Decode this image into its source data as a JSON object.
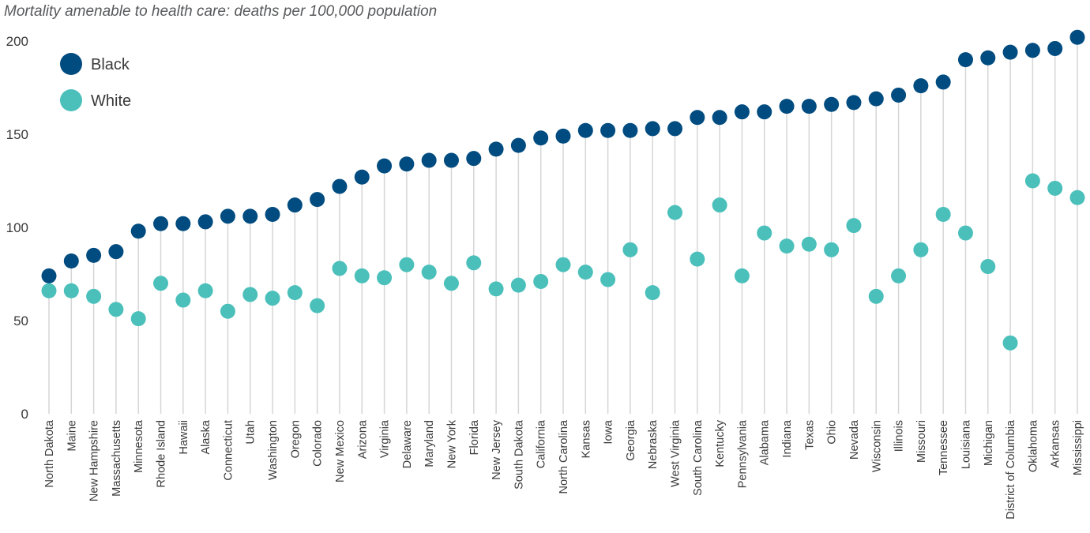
{
  "chart_data": {
    "type": "scatter",
    "title": "Mortality amenable to health care: deaths per 100,000 population",
    "ylim": [
      0,
      200
    ],
    "yticks": [
      0,
      50,
      100,
      150,
      200
    ],
    "grid": false,
    "legend_position": "top-left",
    "categories": [
      "North Dakota",
      "Maine",
      "New Hampshire",
      "Massachusetts",
      "Minnesota",
      "Rhode Island",
      "Hawaii",
      "Alaska",
      "Connecticut",
      "Utah",
      "Washington",
      "Oregon",
      "Colorado",
      "New Mexico",
      "Arizona",
      "Virginia",
      "Delaware",
      "Maryland",
      "New York",
      "Florida",
      "New Jersey",
      "South Dakota",
      "California",
      "North Carolina",
      "Kansas",
      "Iowa",
      "Georgia",
      "Nebraska",
      "West Virginia",
      "South Carolina",
      "Kentucky",
      "Pennsylvania",
      "Alabama",
      "Indiana",
      "Texas",
      "Ohio",
      "Nevada",
      "Wisconsin",
      "Illinois",
      "Missouri",
      "Tennessee",
      "Louisiana",
      "Michigan",
      "District of Columbia",
      "Oklahoma",
      "Arkansas",
      "Mississippi"
    ],
    "series": [
      {
        "name": "Black",
        "color": "#004b7f",
        "values": [
          74,
          82,
          85,
          87,
          98,
          102,
          102,
          103,
          106,
          106,
          107,
          112,
          115,
          122,
          127,
          133,
          134,
          136,
          136,
          137,
          142,
          144,
          148,
          149,
          152,
          152,
          152,
          153,
          153,
          159,
          159,
          162,
          162,
          165,
          165,
          166,
          167,
          169,
          171,
          176,
          178,
          190,
          191,
          194,
          195,
          196,
          202
        ]
      },
      {
        "name": "White",
        "color": "#4bc0bb",
        "values": [
          66,
          66,
          63,
          56,
          51,
          70,
          61,
          66,
          55,
          64,
          62,
          65,
          58,
          78,
          74,
          73,
          80,
          76,
          70,
          81,
          67,
          69,
          71,
          80,
          76,
          72,
          88,
          65,
          108,
          83,
          112,
          74,
          97,
          90,
          91,
          88,
          101,
          63,
          74,
          88,
          107,
          97,
          79,
          38,
          125,
          121,
          116
        ]
      }
    ]
  },
  "legend": {
    "items": [
      {
        "label": "Black",
        "color": "#004b7f"
      },
      {
        "label": "White",
        "color": "#4bc0bb"
      }
    ]
  }
}
